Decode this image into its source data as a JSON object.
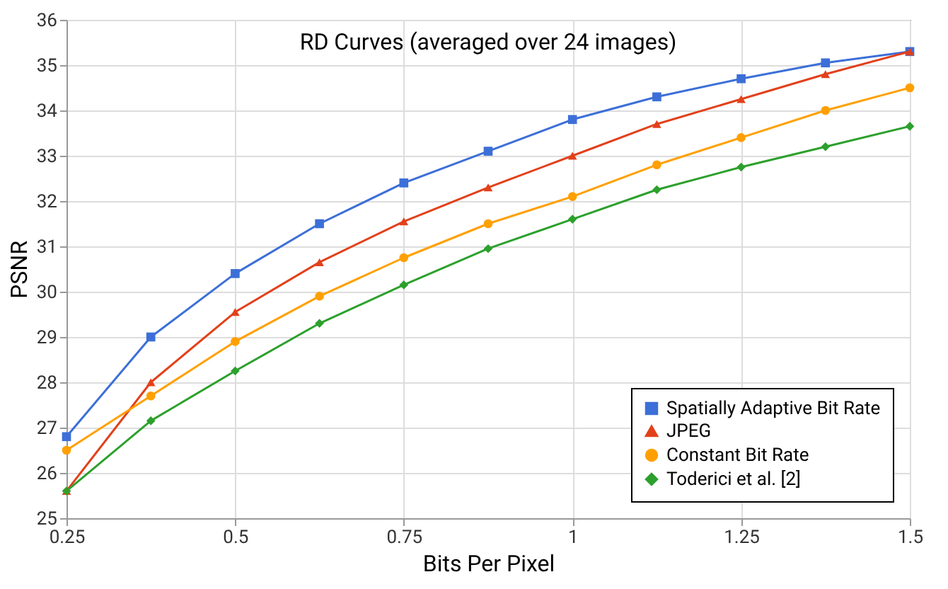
{
  "chart_data": {
    "type": "line",
    "title": "RD Curves (averaged over 24 images)",
    "xlabel": "Bits Per Pixel",
    "ylabel": "PSNR",
    "x": [
      0.25,
      0.375,
      0.5,
      0.625,
      0.75,
      0.875,
      1,
      1.125,
      1.25,
      1.375,
      1.5
    ],
    "series": [
      {
        "name": "Spatially Adaptive Bit Rate",
        "color": "#3c6fd8",
        "marker": "square",
        "values": [
          26.8,
          29.0,
          30.4,
          31.5,
          32.4,
          33.1,
          33.8,
          34.3,
          34.7,
          35.05,
          35.3
        ]
      },
      {
        "name": "JPEG",
        "color": "#e2401a",
        "marker": "triangle",
        "values": [
          25.6,
          28.0,
          29.55,
          30.65,
          31.55,
          32.3,
          33.0,
          33.7,
          34.25,
          34.8,
          35.3
        ]
      },
      {
        "name": "Constant Bit Rate",
        "color": "#ffa000",
        "marker": "circle",
        "values": [
          26.5,
          27.7,
          28.9,
          29.9,
          30.75,
          31.5,
          32.1,
          32.8,
          33.4,
          34.0,
          34.5
        ]
      },
      {
        "name": "Toderici et al. [2]",
        "color": "#2ca02c",
        "marker": "diamond",
        "values": [
          25.6,
          27.15,
          28.25,
          29.3,
          30.15,
          30.95,
          31.6,
          32.25,
          32.75,
          33.2,
          33.65
        ]
      }
    ],
    "xlim": [
      0.25,
      1.5
    ],
    "xticks": [
      0.25,
      0.5,
      0.75,
      1,
      1.25,
      1.5
    ],
    "ylim": [
      25,
      36
    ],
    "yticks": [
      25,
      26,
      27,
      28,
      29,
      30,
      31,
      32,
      33,
      34,
      35,
      36
    ],
    "grid": true,
    "legend": "bottom right",
    "line_style": "solid"
  }
}
